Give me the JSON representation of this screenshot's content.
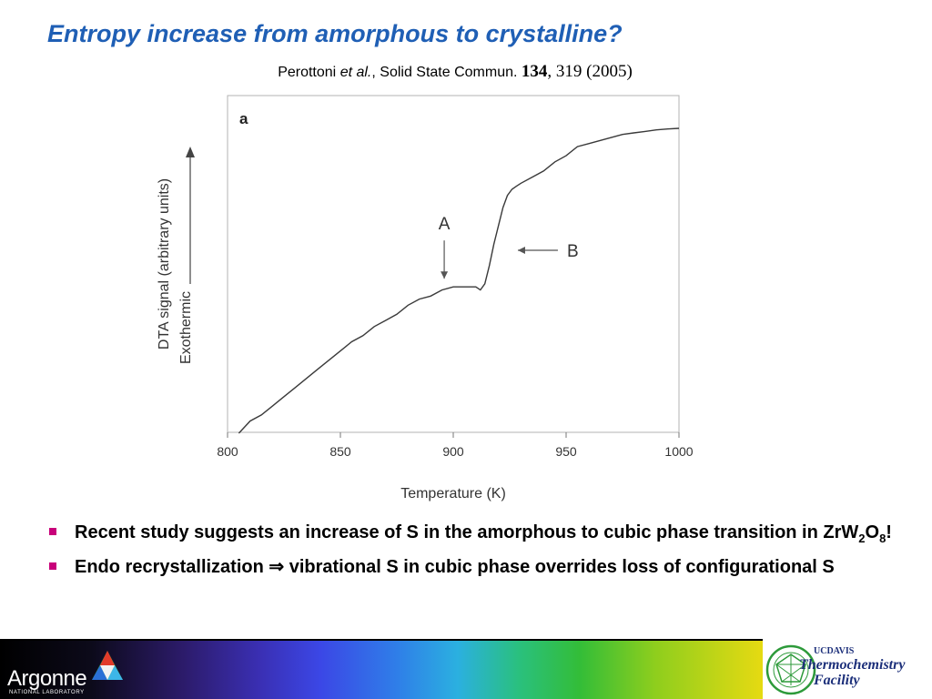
{
  "slide": {
    "title": "Entropy increase from amorphous to crystalline?",
    "citation": {
      "authors": "Perottoni",
      "etal": "et al.",
      "journal": ", Solid State Commun. ",
      "volume": "134",
      "pages": ", 319 (2005)"
    }
  },
  "bullets": [
    {
      "pre": "Recent study suggests an increase of S in the amorphous to cubic phase transition in ZrW",
      "sub1": "2",
      "mid": "O",
      "sub2": "8",
      "post": "!"
    },
    {
      "pre": "Endo recrystallization ",
      "arrow": "⇒",
      "post": " vibrational S in cubic phase overrides loss of configurational S"
    }
  ],
  "footer": {
    "argonne_name": "Argonne",
    "argonne_sub": "NATIONAL LABORATORY",
    "ucd_top": "UCDAVIS",
    "ucd_line1": "Thermochemistry",
    "ucd_line2": "Facility"
  },
  "colors": {
    "title": "#1f5fb5",
    "bullet_marker": "#c8007a",
    "plot_frame": "#b3b3b3"
  },
  "chart_data": {
    "type": "line",
    "panel_label": "a",
    "title": "",
    "xlabel": "Temperature (K)",
    "ylabel_line1": "DTA signal (arbitrary units)",
    "ylabel_line2": "Exothermic",
    "xlim": [
      800,
      1000
    ],
    "xticks": [
      800,
      850,
      900,
      950,
      1000
    ],
    "ylim": [
      0,
      1
    ],
    "yticks_shown": false,
    "series": [
      {
        "x": [
          805,
          810,
          815,
          820,
          825,
          830,
          835,
          840,
          845,
          850,
          855,
          860,
          865,
          870,
          875,
          880,
          885,
          890,
          895,
          900,
          905,
          910,
          912,
          914,
          916,
          918,
          920,
          922,
          924,
          926,
          928,
          930,
          935,
          940,
          945,
          950,
          955,
          960,
          965,
          970,
          975,
          980,
          985,
          990,
          995,
          1000
        ],
        "y": [
          0.0,
          0.04,
          0.06,
          0.09,
          0.12,
          0.15,
          0.18,
          0.21,
          0.24,
          0.27,
          0.3,
          0.32,
          0.35,
          0.37,
          0.39,
          0.42,
          0.44,
          0.45,
          0.47,
          0.48,
          0.48,
          0.48,
          0.47,
          0.49,
          0.55,
          0.62,
          0.68,
          0.74,
          0.78,
          0.8,
          0.81,
          0.82,
          0.84,
          0.86,
          0.89,
          0.91,
          0.94,
          0.95,
          0.96,
          0.97,
          0.98,
          0.985,
          0.99,
          0.995,
          0.998,
          1.0
        ]
      }
    ],
    "annotations": [
      {
        "label": "A",
        "x": 896,
        "y": 0.48,
        "direction": "down"
      },
      {
        "label": "B",
        "x": 927,
        "y": 0.6,
        "direction": "left"
      }
    ]
  }
}
